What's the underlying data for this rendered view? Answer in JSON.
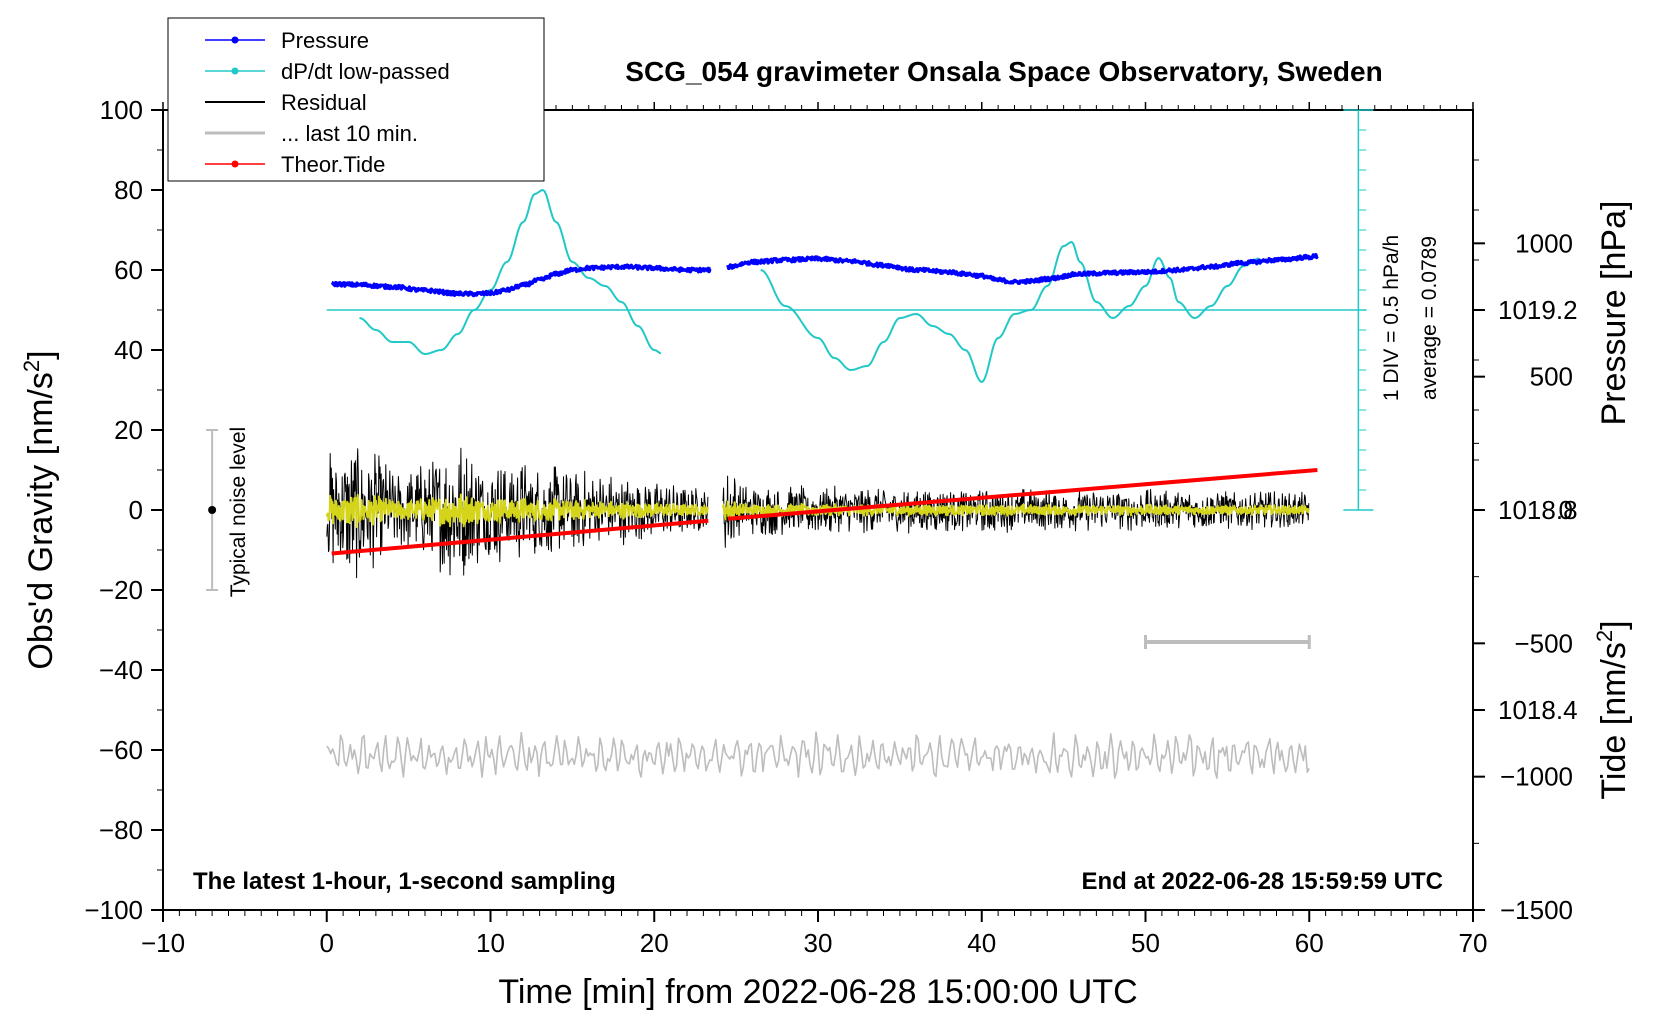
{
  "chart_data": {
    "type": "line",
    "title": "SCG_054 gravimeter Onsala Space Observatory, Sweden",
    "xlabel": "Time [min] from 2022-06-28 15:00:00 UTC",
    "ylabel_main": "Obs'd Gravity [nm/s",
    "ylabel_sup": "2",
    "ylabel_close": "]",
    "ylabel_pressure": "Pressure [hPa]",
    "ylabel_tide": "Tide [nm/s",
    "ylabel_tide_sup": "2",
    "ylabel_tide_close": "]",
    "xlim": [
      -10,
      70
    ],
    "ylim": [
      -100,
      100
    ],
    "xticks": [
      "−10",
      "0",
      "10",
      "20",
      "30",
      "40",
      "50",
      "60",
      "70"
    ],
    "xtick_values": [
      -10,
      0,
      10,
      20,
      30,
      40,
      50,
      60,
      70
    ],
    "yticks": [
      "100",
      "80",
      "60",
      "40",
      "20",
      "0",
      "−20",
      "−40",
      "−60",
      "−80",
      "−100"
    ],
    "ytick_values": [
      100,
      80,
      60,
      40,
      20,
      0,
      -20,
      -40,
      -60,
      -80,
      -100
    ],
    "pressure_axis": {
      "ticks": [
        "1019.2",
        "1018.8",
        "1018.4"
      ],
      "tick_values": [
        1019.2,
        1018.8,
        1018.4
      ],
      "ylim": [
        1018.0,
        1019.6
      ]
    },
    "tide_axis": {
      "ticks": [
        "1000",
        "500",
        "0",
        "−500",
        "−1000",
        "−1500"
      ],
      "tick_values": [
        1000,
        500,
        0,
        -500,
        -1000,
        -1500
      ],
      "ylim": [
        -1500,
        1500
      ]
    },
    "dpdt_scale": {
      "label_div": "1 DIV = 0.5 hPa/h",
      "label_avg": "average = 0.0789",
      "baseline_gravity_units": 50
    },
    "noise_bar": {
      "label": "Typical noise level",
      "x": -7,
      "low": -20,
      "high": 20,
      "center": 0
    },
    "tide_scale_bar": {
      "x_start": 50,
      "x_end": 60,
      "y": -33
    },
    "notes": {
      "left": "The latest 1-hour, 1-second sampling",
      "right": "End at 2022-06-28 15:59:59 UTC"
    },
    "legend": [
      {
        "name": "Pressure",
        "color": "#0000ff",
        "marker": true
      },
      {
        "name": "dP/dt low-passed",
        "color": "#22c8c8",
        "marker": true
      },
      {
        "name": "Residual",
        "color": "#000000",
        "marker": false
      },
      {
        "name": "... last 10 min.",
        "color": "#bdbdbd",
        "marker": false
      },
      {
        "name": "Theor.Tide",
        "color": "#ff0000",
        "marker": true
      }
    ],
    "series": [
      {
        "name": "Pressure",
        "color": "#0000ff",
        "axis": "gravity-equivalent",
        "segments": [
          {
            "x": [
              0.3,
              2,
              4,
              6,
              8,
              9,
              10,
              11,
              12,
              13,
              14,
              15,
              16,
              18,
              20,
              21,
              22,
              23.5
            ],
            "y": [
              56.5,
              56.3,
              55.8,
              54.9,
              54.1,
              54.0,
              54.2,
              55.0,
              56.2,
              57.5,
              59.0,
              60.0,
              60.5,
              60.8,
              60.5,
              60.2,
              60.0,
              60.0
            ]
          },
          {
            "x": [
              24.5,
              26,
              28,
              30,
              32,
              34,
              36,
              38,
              39,
              40,
              41,
              42,
              43,
              44,
              46,
              48,
              50,
              52,
              54,
              56,
              58,
              60,
              60.5
            ],
            "y": [
              60.8,
              62.0,
              62.5,
              62.8,
              62.2,
              61.2,
              60.0,
              59.5,
              59.0,
              58.5,
              57.5,
              57.0,
              57.2,
              57.8,
              59.0,
              59.3,
              59.5,
              60.0,
              60.8,
              61.8,
              62.5,
              63.2,
              63.5
            ]
          }
        ]
      },
      {
        "name": "dP/dt low-passed",
        "color": "#22c8c8",
        "segments": [
          {
            "x": [
              2,
              3,
              4,
              5,
              6,
              7,
              8,
              9,
              10,
              11,
              12,
              12.7,
              13.2,
              14,
              15,
              16,
              17,
              18,
              19,
              20,
              20.5
            ],
            "y": [
              48,
              45,
              42,
              42,
              39,
              40,
              44,
              50,
              55,
              62,
              72,
              79,
              80,
              72,
              62,
              58,
              56,
              52,
              46,
              40,
              39
            ]
          },
          {
            "x": [
              26.5,
              28,
              30,
              31,
              32,
              33,
              34,
              35,
              36,
              37,
              38,
              39,
              40,
              41,
              42,
              43,
              44,
              45,
              45.5,
              46,
              47,
              48,
              49,
              50,
              50.8,
              51.5,
              52,
              53,
              54,
              55,
              56,
              57
            ],
            "y": [
              60,
              51,
              43,
              38,
              35,
              36,
              42,
              48,
              49,
              46,
              44,
              40,
              32,
              43,
              49,
              50,
              56,
              66,
              67,
              62,
              52,
              48,
              51,
              56,
              63,
              58,
              52,
              48,
              51,
              56,
              61,
              63
            ]
          }
        ]
      },
      {
        "name": "Residual",
        "color": "#000000",
        "segments": [
          {
            "x_range": [
              0,
              23.3
            ]
          },
          {
            "x_range": [
              24.2,
              60
            ]
          }
        ]
      },
      {
        "name": "... last 10 min.",
        "color": "#bdbdbd",
        "baseline_gravity_units": -60,
        "segments": [
          {
            "x_range": [
              0,
              60
            ]
          }
        ]
      },
      {
        "name": "Theor.Tide",
        "color": "#ff0000",
        "axis": "tide",
        "segments": [
          {
            "x": [
              0.3,
              23.3
            ],
            "y": [
              -163,
              -40
            ]
          },
          {
            "x": [
              24.5,
              60.5
            ],
            "y": [
              -33,
              150
            ]
          }
        ]
      }
    ]
  }
}
